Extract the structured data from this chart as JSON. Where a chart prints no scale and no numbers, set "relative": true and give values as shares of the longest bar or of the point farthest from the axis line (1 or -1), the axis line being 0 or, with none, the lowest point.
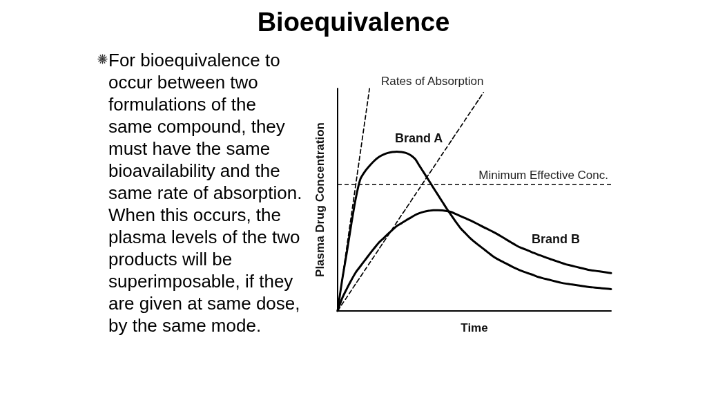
{
  "chart_data": {
    "type": "line",
    "title": "Bioequivalence",
    "xlabel": "Time",
    "ylabel": "Plasma Drug Concentration",
    "relative": true,
    "categories": [
      null,
      null,
      null,
      null,
      null,
      null,
      null,
      null,
      null,
      null,
      null,
      null,
      null,
      null,
      null,
      null,
      null,
      null,
      null,
      null,
      null,
      null,
      null,
      null,
      null,
      null,
      null,
      null,
      null,
      null,
      null,
      null,
      null,
      null,
      null,
      null,
      null,
      null,
      null,
      null,
      null,
      null,
      null,
      null,
      null,
      null,
      null,
      null,
      null,
      null,
      null,
      null,
      null,
      null,
      null,
      null,
      null,
      null,
      null,
      null,
      null
    ],
    "series": [
      {
        "name": "Brand A",
        "color": "#000000",
        "values": [
          0,
          0.14,
          0.261,
          0.39,
          0.508,
          0.593,
          0.627,
          0.652,
          0.674,
          0.691,
          0.702,
          0.71,
          0.714,
          0.716,
          0.714,
          0.71,
          0.7,
          0.683,
          0.651,
          0.619,
          0.587,
          0.554,
          0.522,
          0.49,
          0.458,
          0.428,
          0.399,
          0.371,
          0.35,
          0.329,
          0.311,
          0.295,
          0.279,
          0.263,
          0.247,
          0.234,
          0.223,
          0.213,
          0.202,
          0.192,
          0.183,
          0.175,
          0.168,
          0.161,
          0.153,
          0.147,
          0.142,
          0.137,
          0.132,
          0.127,
          0.123,
          0.12,
          0.117,
          0.114,
          0.111,
          0.108,
          0.106,
          0.104,
          0.102,
          0.1,
          0.098
        ]
      },
      {
        "name": "Brand B",
        "color": "#000000",
        "values": [
          0,
          0.057,
          0.099,
          0.138,
          0.174,
          0.201,
          0.228,
          0.255,
          0.281,
          0.306,
          0.325,
          0.345,
          0.364,
          0.382,
          0.394,
          0.407,
          0.419,
          0.431,
          0.44,
          0.446,
          0.45,
          0.453,
          0.453,
          0.452,
          0.449,
          0.444,
          0.435,
          0.426,
          0.417,
          0.408,
          0.398,
          0.388,
          0.377,
          0.367,
          0.357,
          0.346,
          0.334,
          0.321,
          0.309,
          0.297,
          0.286,
          0.278,
          0.27,
          0.261,
          0.253,
          0.246,
          0.238,
          0.231,
          0.224,
          0.217,
          0.21,
          0.205,
          0.2,
          0.195,
          0.19,
          0.185,
          0.182,
          0.179,
          0.176,
          0.173,
          0.17
        ]
      },
      {
        "color": "#000000",
        "line_style": "dashed",
        "values": [
          0,
          0.143,
          0.286,
          0.429,
          0.571,
          0.714,
          0.857,
          1,
          null,
          null,
          null,
          null,
          null,
          null,
          null,
          null,
          null,
          null,
          null,
          null,
          null,
          null,
          null,
          null,
          null,
          null,
          null,
          null,
          null,
          null,
          null,
          null,
          null,
          null,
          null,
          null,
          null,
          null,
          null,
          null,
          null,
          null,
          null,
          null,
          null,
          null,
          null,
          null,
          null,
          null,
          null,
          null,
          null,
          null,
          null,
          null,
          null,
          null,
          null,
          null,
          null
        ]
      },
      {
        "color": "#000000",
        "line_style": "dashed",
        "values": [
          0,
          0.031,
          0.061,
          0.092,
          0.123,
          0.153,
          0.184,
          0.215,
          0.245,
          0.276,
          0.307,
          0.337,
          0.368,
          0.399,
          0.43,
          0.46,
          0.491,
          0.522,
          0.552,
          0.583,
          0.614,
          0.644,
          0.675,
          0.706,
          0.736,
          0.767,
          0.798,
          0.828,
          0.859,
          0.89,
          0.92,
          0.951,
          0.982,
          null,
          null,
          null,
          null,
          null,
          null,
          null,
          null,
          null,
          null,
          null,
          null,
          null,
          null,
          null,
          null,
          null,
          null,
          null,
          null,
          null,
          null,
          null,
          null,
          null,
          null,
          null,
          null
        ]
      }
    ],
    "ref_lines": [
      {
        "axis": "y",
        "value": 0.57,
        "label": "Minimum Effective Conc.",
        "line_style": "dashed",
        "color": "#000000"
      }
    ],
    "annotations": [
      "For bioequivalence to\noccur between two\nformulations of the\nsame compound, they\nmust have the same\nbioavailability and the\nsame rate of absorption.\nWhen this occurs, the\nplasma levels of the two\nproducts will be\nsuperimposable, if they\nare given at same dose,\nby the same mode.",
      "Rates of Absorption"
    ]
  }
}
